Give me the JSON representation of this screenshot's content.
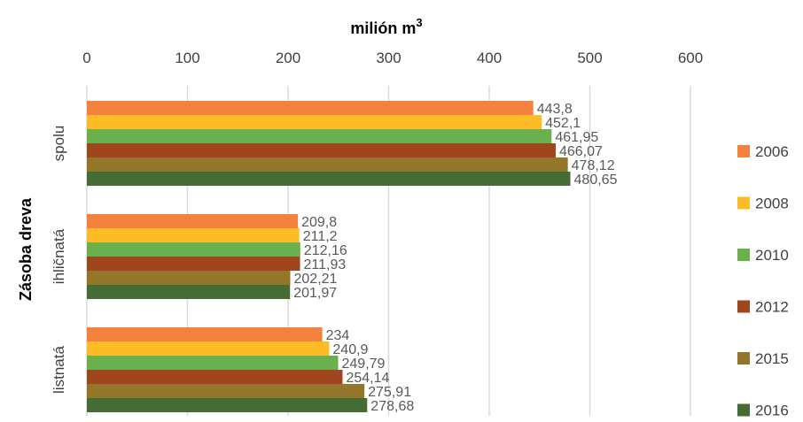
{
  "chart_data": {
    "type": "bar",
    "orientation": "horizontal",
    "title": "",
    "xlabel": "milión m",
    "xlabel_superscript": "3",
    "ylabel": "Zásoba dreva",
    "xlim": [
      0,
      600
    ],
    "xticks": [
      "0",
      "100",
      "200",
      "300",
      "400",
      "500",
      "600"
    ],
    "grid": true,
    "legend_position": "right",
    "categories": [
      "spolu",
      "ihličnatá",
      "listnatá"
    ],
    "series": [
      {
        "name": "2006",
        "color": "#f4813d",
        "values": [
          443.8,
          209.8,
          234
        ],
        "labels": [
          "443,8",
          "209,8",
          "234"
        ]
      },
      {
        "name": "2008",
        "color": "#fbbc26",
        "values": [
          452.1,
          211.2,
          240.9
        ],
        "labels": [
          "452,1",
          "211,2",
          "240,9"
        ]
      },
      {
        "name": "2010",
        "color": "#6ab04c",
        "values": [
          461.95,
          212.16,
          249.79
        ],
        "labels": [
          "461,95",
          "212,16",
          "249,79"
        ]
      },
      {
        "name": "2012",
        "color": "#a0461f",
        "values": [
          466.07,
          211.93,
          254.14
        ],
        "labels": [
          "466,07",
          "211,93",
          "254,14"
        ]
      },
      {
        "name": "2015",
        "color": "#94762a",
        "values": [
          478.12,
          202.21,
          275.91
        ],
        "labels": [
          "478,12",
          "202,21",
          "275,91"
        ]
      },
      {
        "name": "2016",
        "color": "#466c35",
        "values": [
          480.65,
          201.97,
          278.68
        ],
        "labels": [
          "480,65",
          "201,97",
          "278,68"
        ]
      }
    ]
  }
}
